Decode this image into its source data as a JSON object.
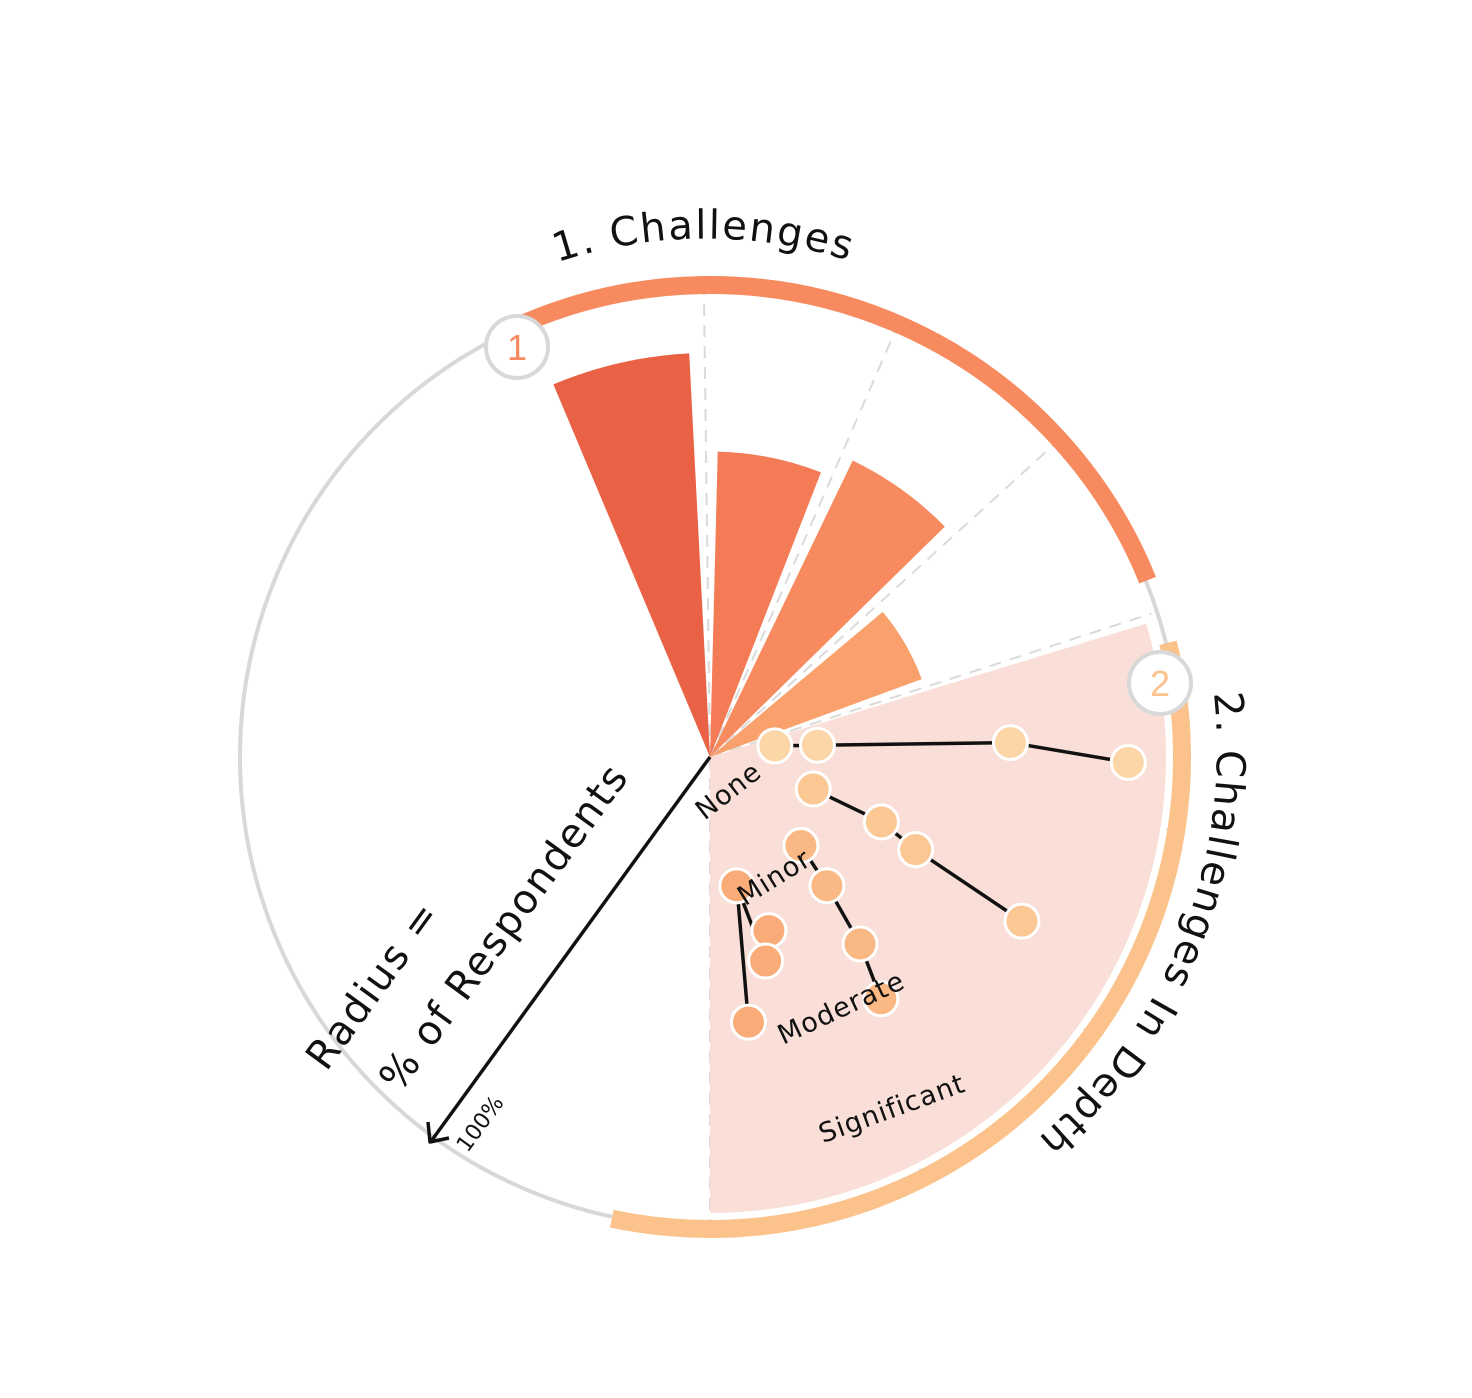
{
  "section1": {
    "title": "1. Challenges",
    "badge": "1",
    "color": "#f78b5f"
  },
  "section2": {
    "title": "2. Challenges In Depth",
    "badge": "2",
    "color": "#fbc38b"
  },
  "radius_legend": {
    "line1": "Radius =",
    "line2": "% of Respondents",
    "max_label": "100%"
  },
  "chart_data": [
    {
      "type": "bar",
      "subtype": "radial",
      "title": "1. Challenges",
      "categories": [
        "",
        "",
        "",
        ""
      ],
      "values": [
        86,
        65,
        70,
        48
      ],
      "ylim": [
        0,
        100
      ],
      "colors": [
        "#ea6246",
        "#f37b55",
        "#f78b5f",
        "#f9a06d"
      ],
      "grid": true
    },
    {
      "type": "scatter",
      "subtype": "radial-levels",
      "title": "2. Challenges In Depth",
      "levels": [
        "None",
        "Minor",
        "Moderate",
        "Significant"
      ],
      "ylim": [
        0,
        100
      ],
      "series": [
        {
          "values": [
            14,
            23,
            64,
            89
          ],
          "color": "#fcd6a6"
        },
        {
          "values": [
            23,
            39,
            48,
            75
          ],
          "color": "#fbc893"
        },
        {
          "values": [
            27,
            37,
            51,
            63
          ],
          "color": "#fab984"
        },
        {
          "values": [
            39,
            45,
            28,
            57
          ],
          "color": "#f9ac77"
        }
      ],
      "grid": true
    }
  ]
}
